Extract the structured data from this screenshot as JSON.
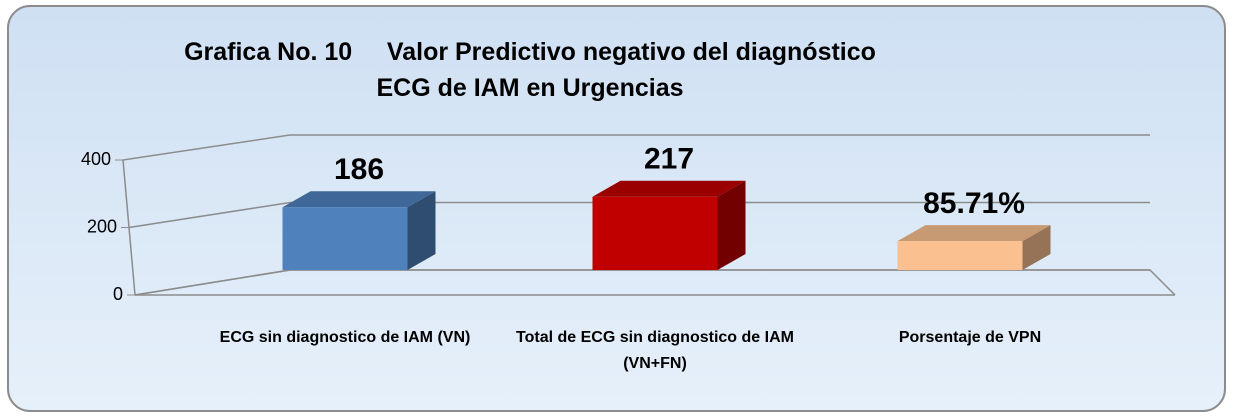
{
  "chart_data": {
    "type": "bar3d",
    "title": "Grafica No. 10     Valor Predictivo negativo del diagnóstico ECG de IAM en Urgencias",
    "categories": [
      "ECG sin diagnostico de IAM (VN)",
      "Total de ECG sin diagnostico de IAM (VN+FN)",
      "Porsentaje de VPN"
    ],
    "values": [
      186,
      217,
      85.71
    ],
    "value_labels": [
      "186",
      "217",
      "85.71%"
    ],
    "colors": [
      "#4f81bd",
      "#c00000",
      "#fac090"
    ],
    "ylim": [
      0,
      400
    ],
    "yticks": [
      0,
      200,
      400
    ],
    "grid": true
  }
}
